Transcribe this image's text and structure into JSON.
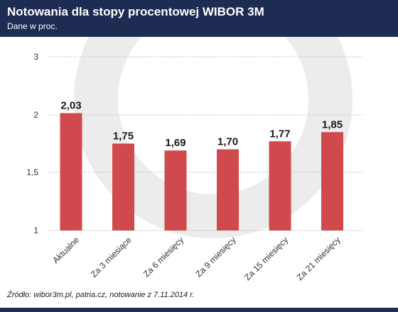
{
  "header": {
    "title": "Notowania dla stopy procentowej WIBOR 3M",
    "subtitle": "Dane w proc."
  },
  "footer": {
    "source": "Źródło: wibor3m.pl, patria.cz, notowanie z 7.11.2014 r."
  },
  "colors": {
    "header_bg": "#1e2b53",
    "bar": "#d0494c",
    "watermark": "#ececec",
    "grid": "#b5b5b5"
  },
  "chart_data": {
    "type": "bar",
    "categories": [
      "Aktualne",
      "Za 3 miesiące",
      "Za 6 miesięcy",
      "Za 9 miesięcy",
      "Za 15 miesięcy",
      "Za 21 miesięcy"
    ],
    "values": [
      2.03,
      1.75,
      1.69,
      1.7,
      1.77,
      1.85
    ],
    "value_labels": [
      "2,03",
      "1,75",
      "1,69",
      "1,70",
      "1,77",
      "1,85"
    ],
    "yticks": [
      1,
      1.5,
      2,
      3
    ],
    "ytick_labels": [
      "1",
      "1,5",
      "2",
      "3"
    ],
    "ylim": [
      1,
      3
    ],
    "y_scale": "piecewise",
    "grid": true,
    "legend": "none",
    "xlabel": "",
    "ylabel": ""
  }
}
